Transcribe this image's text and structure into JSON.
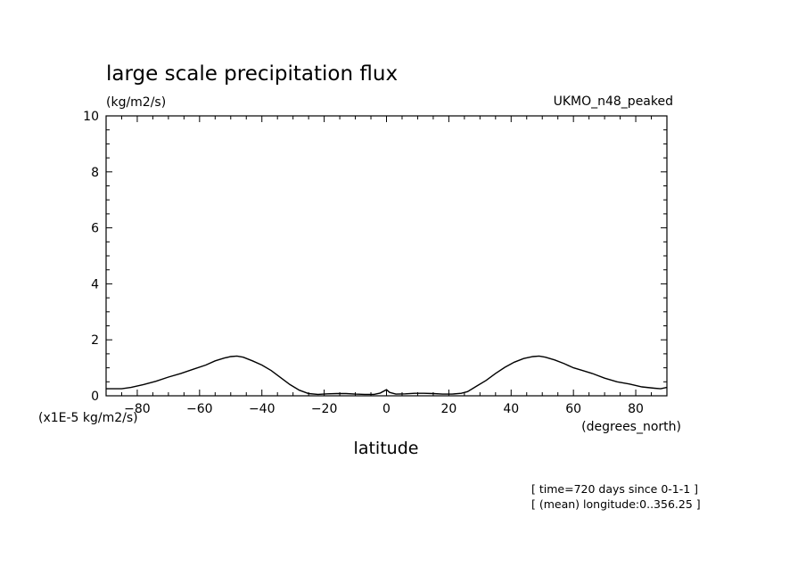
{
  "chart_data": {
    "type": "line",
    "title": "large scale precipitation flux",
    "units": "(kg/m2/s)",
    "dataset": "UKMO_n48_peaked",
    "ylabel_scale": "(x1E-5 kg/m2/s)",
    "xlabel": "latitude",
    "xunits": "(degrees_north)",
    "xlim": [
      -90,
      90
    ],
    "ylim": [
      0,
      10
    ],
    "xticks": [
      -80,
      -60,
      -40,
      -20,
      0,
      20,
      40,
      60,
      80
    ],
    "yticks": [
      0,
      2,
      4,
      6,
      8,
      10
    ],
    "grid": false,
    "series": [
      {
        "x": [
          -90,
          -85,
          -82,
          -78,
          -74,
          -70,
          -66,
          -62,
          -58,
          -55,
          -52,
          -50,
          -48,
          -46,
          -43,
          -40,
          -37,
          -34,
          -31,
          -28,
          -25,
          -22,
          -19,
          -16,
          -13,
          -10,
          -7,
          -4,
          -2,
          0,
          1,
          3,
          6,
          9,
          12,
          15,
          18,
          21,
          24,
          26,
          29,
          32,
          35,
          38,
          41,
          44,
          47,
          49,
          51,
          54,
          57,
          60,
          63,
          66,
          70,
          74,
          78,
          82,
          86,
          88,
          90
        ],
        "y": [
          0.25,
          0.25,
          0.3,
          0.4,
          0.52,
          0.67,
          0.8,
          0.95,
          1.1,
          1.25,
          1.35,
          1.4,
          1.42,
          1.38,
          1.25,
          1.1,
          0.9,
          0.65,
          0.4,
          0.2,
          0.08,
          0.05,
          0.07,
          0.08,
          0.08,
          0.06,
          0.05,
          0.05,
          0.1,
          0.22,
          0.12,
          0.06,
          0.07,
          0.09,
          0.09,
          0.08,
          0.06,
          0.06,
          0.09,
          0.15,
          0.35,
          0.55,
          0.8,
          1.02,
          1.2,
          1.33,
          1.4,
          1.42,
          1.38,
          1.28,
          1.15,
          1.0,
          0.9,
          0.8,
          0.63,
          0.5,
          0.42,
          0.32,
          0.27,
          0.25,
          0.3
        ]
      }
    ]
  },
  "footer": {
    "line1": "[ time=720 days since 0-1-1 ]",
    "line2": "[ (mean) longitude:0..356.25 ]"
  }
}
